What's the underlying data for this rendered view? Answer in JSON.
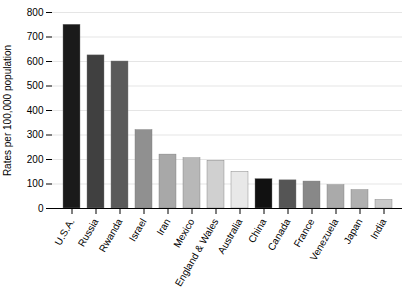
{
  "chart_data": {
    "type": "bar",
    "categories": [
      "U.S.A.",
      "Russia",
      "Rwanda",
      "Israel",
      "Iran",
      "Mexico",
      "England & Wales",
      "Australia",
      "China",
      "Canada",
      "France",
      "Venezuela",
      "Japan",
      "India"
    ],
    "values": [
      750,
      625,
      600,
      320,
      220,
      205,
      195,
      150,
      120,
      115,
      110,
      95,
      75,
      35
    ],
    "colors": [
      "#1a1a1a",
      "#404040",
      "#5a5a5a",
      "#909090",
      "#a8a8a8",
      "#b8b8b8",
      "#d0d0d0",
      "#e8e8e8",
      "#111111",
      "#555555",
      "#888888",
      "#aaaaaa",
      "#b0b0b0",
      "#c8c8c8"
    ],
    "ylabel": "Rates per 100,000 population",
    "ylim": [
      0,
      800
    ],
    "yticks": [
      0,
      100,
      200,
      300,
      400,
      500,
      600,
      700,
      800
    ],
    "grid": true
  }
}
